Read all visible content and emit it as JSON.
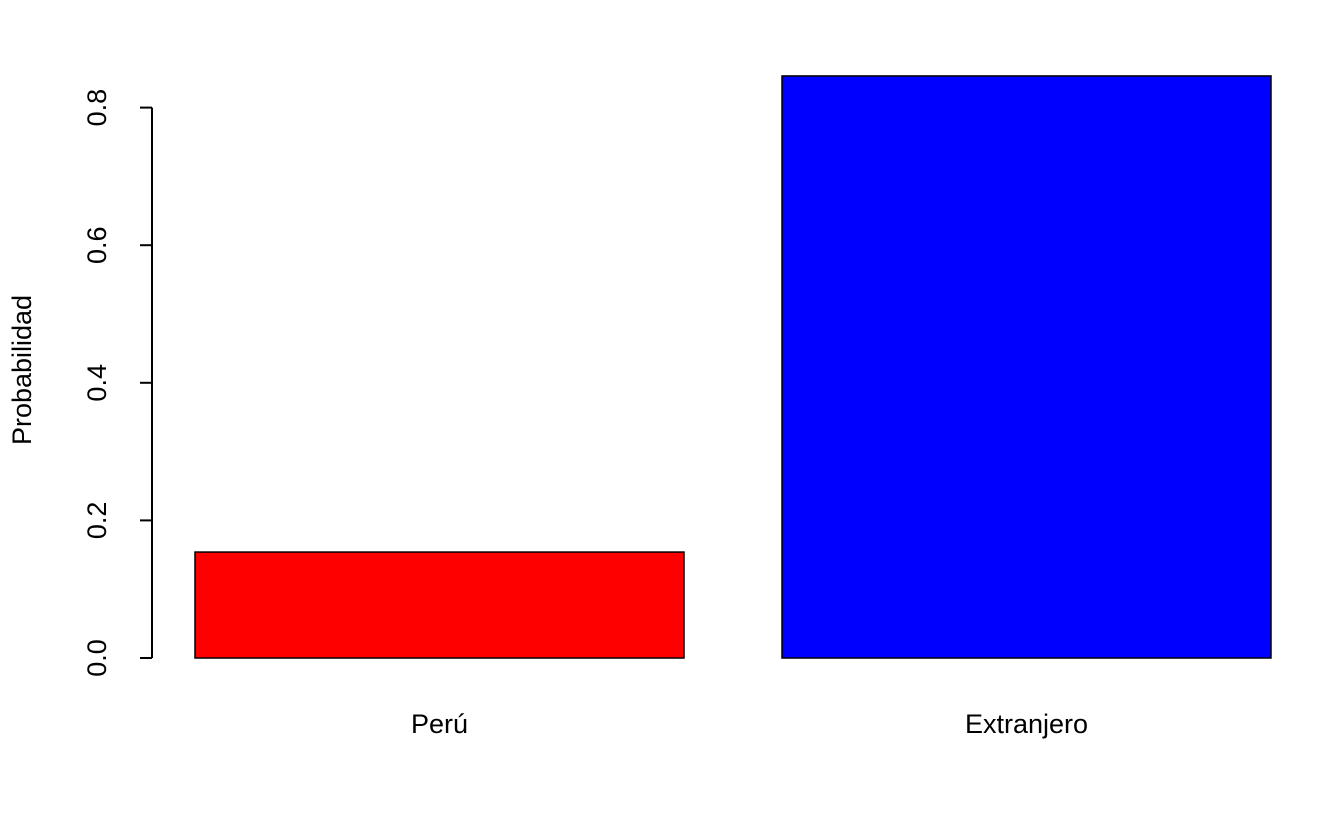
{
  "chart_data": {
    "type": "bar",
    "title": "",
    "xlabel": "",
    "ylabel": "Probabilidad",
    "categories": [
      "Perú",
      "Extranjero"
    ],
    "values": [
      0.154,
      0.846
    ],
    "colors": [
      "#ff0000",
      "#0000ff"
    ],
    "ylim": [
      0,
      0.85
    ],
    "yticks": [
      0.0,
      0.2,
      0.4,
      0.6,
      0.8
    ],
    "ytick_labels": [
      "0.0",
      "0.2",
      "0.4",
      "0.6",
      "0.8"
    ],
    "grid": false,
    "legend": "none"
  }
}
